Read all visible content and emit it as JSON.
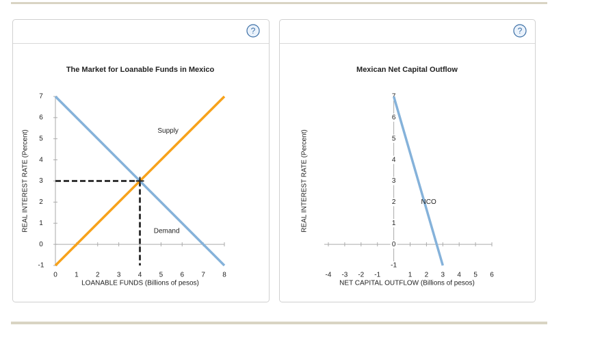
{
  "chart_data": [
    {
      "type": "line",
      "title": "The Market for Loanable Funds in Mexico",
      "x_label": "LOANABLE FUNDS (Billions of pesos)",
      "y_label": "REAL INTEREST RATE (Percent)",
      "xlim": [
        0,
        8
      ],
      "ylim": [
        -1,
        7
      ],
      "xticks": [
        0,
        1,
        2,
        3,
        4,
        5,
        6,
        7,
        8
      ],
      "yticks": [
        -1,
        0,
        1,
        2,
        3,
        4,
        5,
        6,
        7
      ],
      "series": [
        {
          "name": "Supply",
          "color": "#f7a21b",
          "x": [
            0,
            8
          ],
          "values": [
            -1,
            7
          ]
        },
        {
          "name": "Demand",
          "color": "#85b2da",
          "x": [
            0,
            8
          ],
          "values": [
            7,
            -1
          ]
        }
      ],
      "equilibrium": {
        "x": 4,
        "y": 3
      }
    },
    {
      "type": "line",
      "title": "Mexican Net Capital Outflow",
      "x_label": "NET CAPITAL OUTFLOW (Billions of pesos)",
      "y_label": "REAL INTEREST RATE (Percent)",
      "xlim": [
        -4,
        6
      ],
      "ylim": [
        -1,
        7
      ],
      "xticks": [
        -4,
        -3,
        -2,
        -1,
        1,
        2,
        3,
        4,
        5,
        6
      ],
      "yticks": [
        -1,
        0,
        1,
        2,
        3,
        4,
        5,
        6,
        7
      ],
      "series": [
        {
          "name": "NCO",
          "color": "#85b2da",
          "x": [
            0,
            3
          ],
          "values": [
            7,
            -1
          ]
        }
      ]
    }
  ]
}
